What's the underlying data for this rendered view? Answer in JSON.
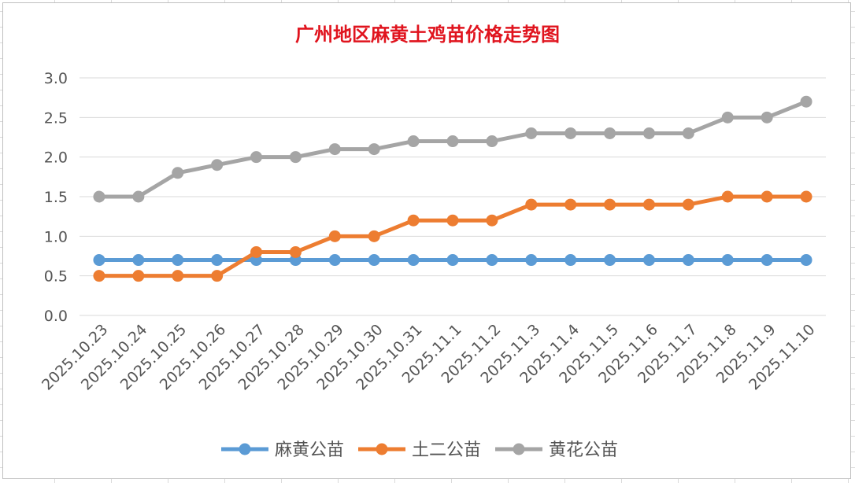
{
  "chart_data": {
    "type": "line",
    "title": "广州地区麻黄土鸡苗价格走势图",
    "xlabel": "",
    "ylabel": "",
    "categories": [
      "2025.10.23",
      "2025.10.24",
      "2025.10.25",
      "2025.10.26",
      "2025.10.27",
      "2025.10.28",
      "2025.10.29",
      "2025.10.30",
      "2025.10.31",
      "2025.11.1",
      "2025.11.2",
      "2025.11.3",
      "2025.11.4",
      "2025.11.5",
      "2025.11.6",
      "2025.11.7",
      "2025.11.8",
      "2025.11.9",
      "2025.11.10"
    ],
    "ylim": [
      0,
      3
    ],
    "yticks": [
      "0.0",
      "0.5",
      "1.0",
      "1.5",
      "2.0",
      "2.5",
      "3.0"
    ],
    "grid": true,
    "legend_position": "bottom",
    "series": [
      {
        "name": "麻黄公苗",
        "color": "#5b9bd5",
        "values": [
          0.7,
          0.7,
          0.7,
          0.7,
          0.7,
          0.7,
          0.7,
          0.7,
          0.7,
          0.7,
          0.7,
          0.7,
          0.7,
          0.7,
          0.7,
          0.7,
          0.7,
          0.7,
          0.7
        ]
      },
      {
        "name": "土二公苗",
        "color": "#ed7d31",
        "values": [
          0.5,
          0.5,
          0.5,
          0.5,
          0.8,
          0.8,
          1.0,
          1.0,
          1.2,
          1.2,
          1.2,
          1.4,
          1.4,
          1.4,
          1.4,
          1.4,
          1.5,
          1.5,
          1.5
        ]
      },
      {
        "name": "黄花公苗",
        "color": "#a5a5a5",
        "values": [
          1.5,
          1.5,
          1.8,
          1.9,
          2.0,
          2.0,
          2.1,
          2.1,
          2.2,
          2.2,
          2.2,
          2.3,
          2.3,
          2.3,
          2.3,
          2.3,
          2.5,
          2.5,
          2.7
        ]
      }
    ]
  }
}
